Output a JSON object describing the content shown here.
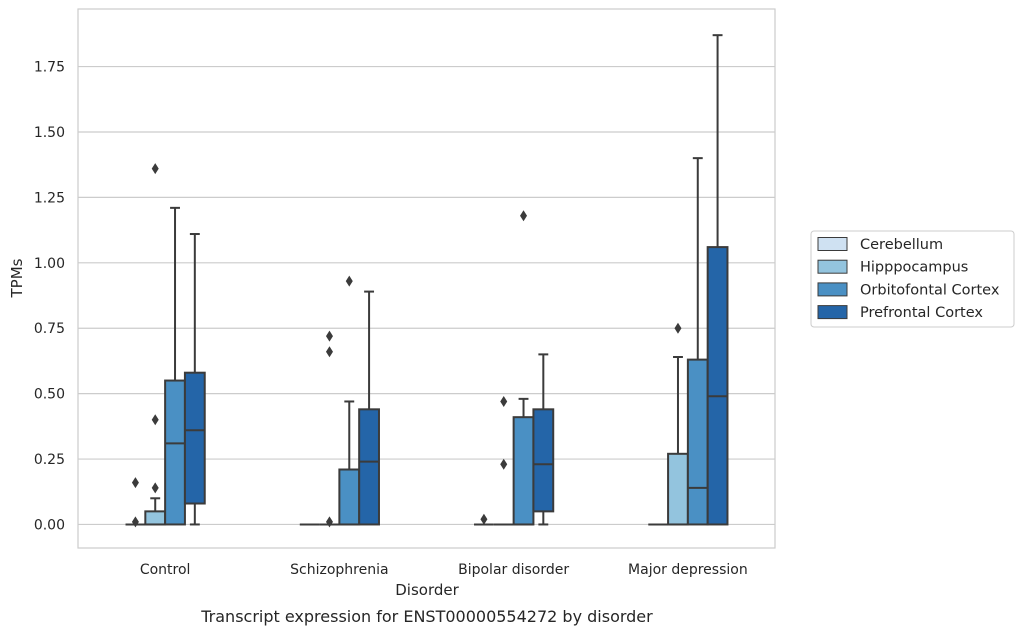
{
  "chart_data": {
    "type": "boxplot",
    "title": "",
    "caption": "Transcript expression for ENST00000554272 by disorder",
    "xlabel": "Disorder",
    "ylabel": "TPMs",
    "ylim": [
      -0.09,
      1.97
    ],
    "yticks": [
      "0.00",
      "0.25",
      "0.50",
      "0.75",
      "1.00",
      "1.25",
      "1.50",
      "1.75"
    ],
    "ytick_values": [
      0,
      0.25,
      0.5,
      0.75,
      1.0,
      1.25,
      1.5,
      1.75
    ],
    "grid": true,
    "legend_position": "right",
    "categories": [
      "Control",
      "Schizophrenia",
      "Bipolar disorder",
      "Major depression"
    ],
    "series": [
      {
        "name": "Cerebellum",
        "color": "#cfe1f2",
        "boxes": [
          {
            "whisker_low": 0,
            "q1": 0,
            "median": 0,
            "q3": 0,
            "whisker_high": 0,
            "outliers": [
              0.01,
              0.16
            ]
          },
          {
            "whisker_low": 0,
            "q1": 0,
            "median": 0,
            "q3": 0,
            "whisker_high": 0,
            "outliers": []
          },
          {
            "whisker_low": 0,
            "q1": 0,
            "median": 0,
            "q3": 0,
            "whisker_high": 0,
            "outliers": [
              0.02
            ]
          },
          {
            "whisker_low": 0,
            "q1": 0,
            "median": 0,
            "q3": 0,
            "whisker_high": 0,
            "outliers": []
          }
        ]
      },
      {
        "name": "Hipppocampus",
        "color": "#93c4de",
        "boxes": [
          {
            "whisker_low": 0,
            "q1": 0,
            "median": 0,
            "q3": 0.05,
            "whisker_high": 0.1,
            "outliers": [
              0.14,
              0.4,
              1.36
            ]
          },
          {
            "whisker_low": 0,
            "q1": 0,
            "median": 0,
            "q3": 0,
            "whisker_high": 0,
            "outliers": [
              0.01,
              0.66,
              0.72
            ]
          },
          {
            "whisker_low": 0,
            "q1": 0,
            "median": 0,
            "q3": 0,
            "whisker_high": 0,
            "outliers": [
              0.23,
              0.47
            ]
          },
          {
            "whisker_low": 0,
            "q1": 0,
            "median": 0,
            "q3": 0.27,
            "whisker_high": 0.64,
            "outliers": [
              0.75
            ]
          }
        ]
      },
      {
        "name": "Orbitofontal Cortex",
        "color": "#4a90c4",
        "boxes": [
          {
            "whisker_low": 0,
            "q1": 0,
            "median": 0.31,
            "q3": 0.55,
            "whisker_high": 1.21,
            "outliers": []
          },
          {
            "whisker_low": 0,
            "q1": 0,
            "median": 0,
            "q3": 0.21,
            "whisker_high": 0.47,
            "outliers": [
              0.93
            ]
          },
          {
            "whisker_low": 0,
            "q1": 0,
            "median": 0,
            "q3": 0.41,
            "whisker_high": 0.48,
            "outliers": [
              1.18
            ]
          },
          {
            "whisker_low": 0,
            "q1": 0,
            "median": 0.14,
            "q3": 0.63,
            "whisker_high": 1.4,
            "outliers": []
          }
        ]
      },
      {
        "name": "Prefrontal Cortex",
        "color": "#2465a8",
        "boxes": [
          {
            "whisker_low": 0,
            "q1": 0.08,
            "median": 0.36,
            "q3": 0.58,
            "whisker_high": 1.11,
            "outliers": []
          },
          {
            "whisker_low": 0,
            "q1": 0,
            "median": 0.24,
            "q3": 0.44,
            "whisker_high": 0.89,
            "outliers": []
          },
          {
            "whisker_low": 0,
            "q1": 0.05,
            "median": 0.23,
            "q3": 0.44,
            "whisker_high": 0.65,
            "outliers": []
          },
          {
            "whisker_low": 0,
            "q1": 0,
            "median": 0.49,
            "q3": 1.06,
            "whisker_high": 1.87,
            "outliers": []
          }
        ]
      }
    ]
  }
}
